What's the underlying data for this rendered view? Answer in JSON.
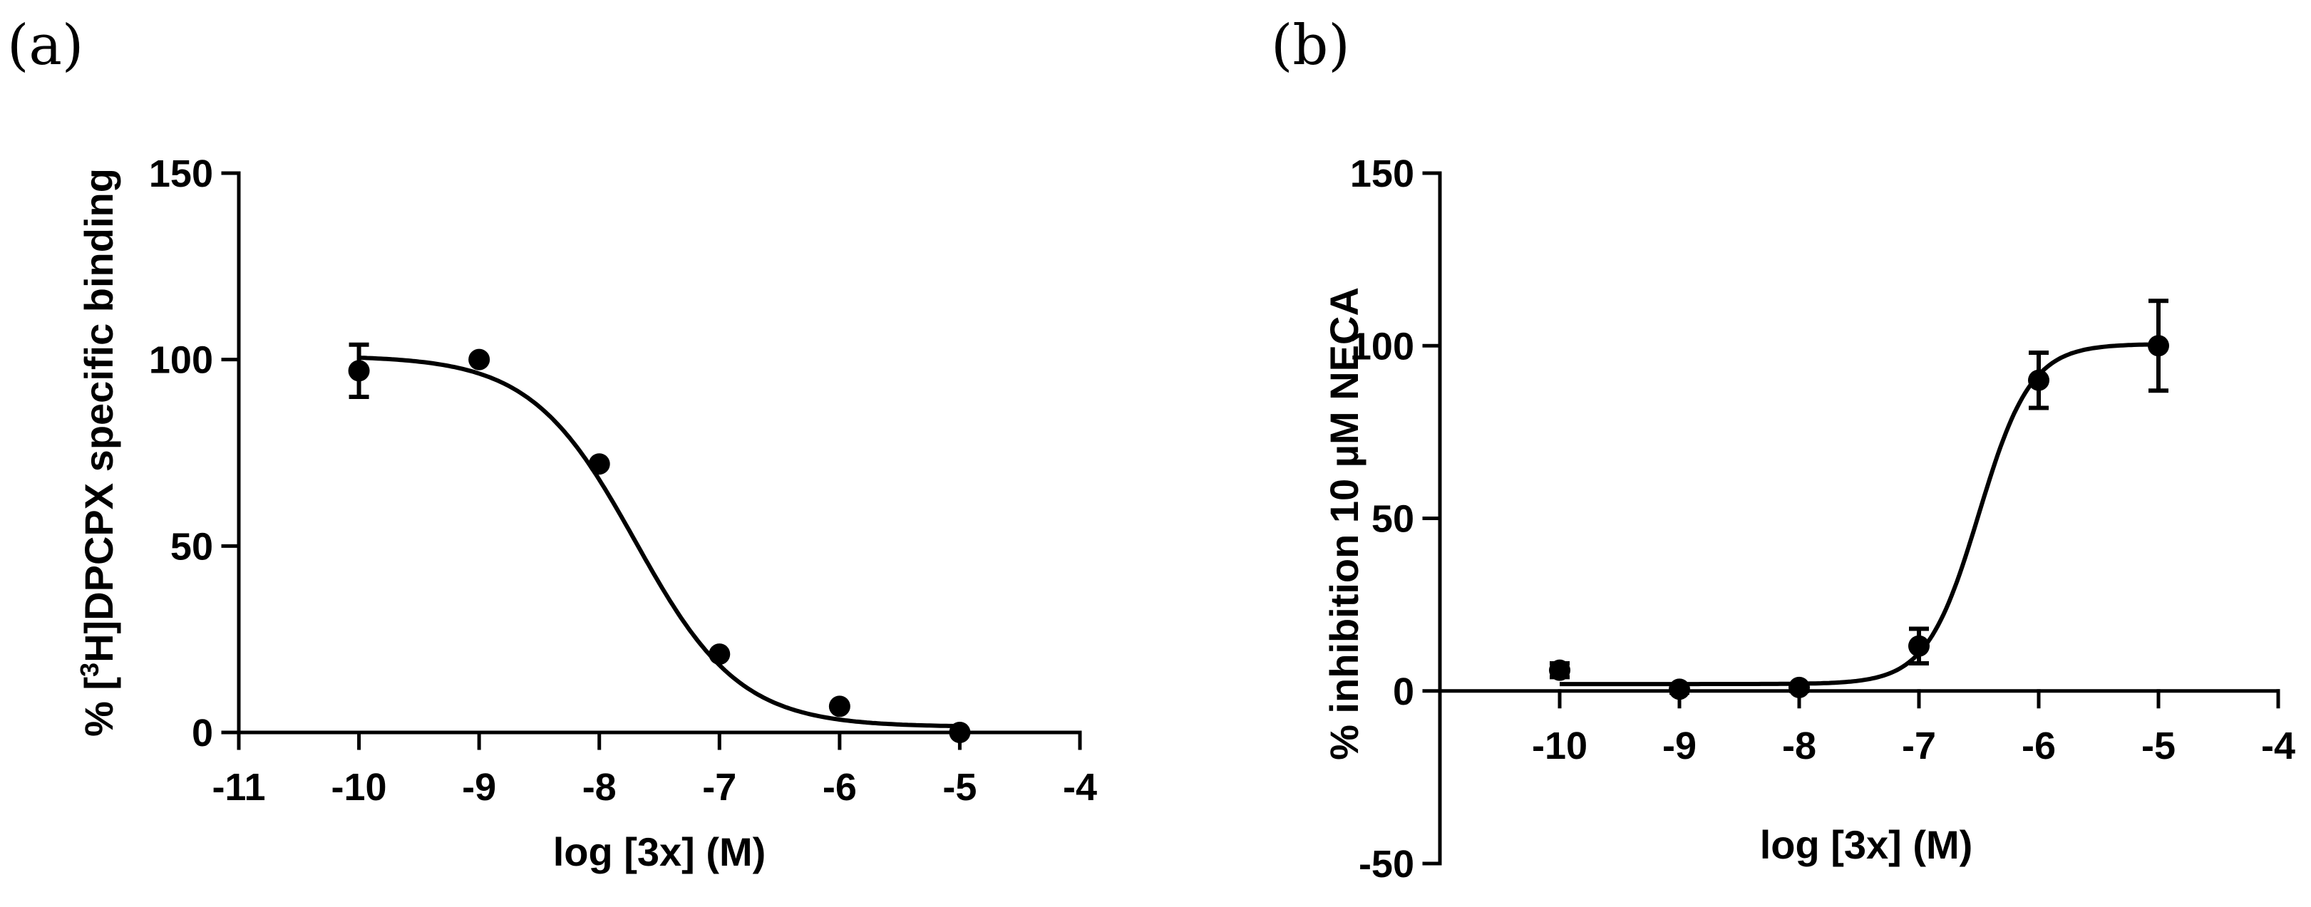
{
  "chart_data": [
    {
      "panel_label": "(a)",
      "type": "scatter",
      "xlabel": "log [3x] (M)",
      "ylabel": {
        "prefix": "% [",
        "superscript": "3",
        "suffix": "H]DPCPX specific binding"
      },
      "xlim": [
        -11,
        -4
      ],
      "ylim": [
        0,
        150
      ],
      "x_ticks": [
        -11,
        -10,
        -9,
        -8,
        -7,
        -6,
        -5,
        -4
      ],
      "x_tick_labels": [
        "-11",
        "-10",
        "-9",
        "-8",
        "-7",
        "-6",
        "-5",
        "-4"
      ],
      "y_ticks": [
        0,
        50,
        100,
        150
      ],
      "y_tick_labels": [
        "0",
        "50",
        "100",
        "150"
      ],
      "points": [
        {
          "x": -10,
          "y": 97,
          "err": 7
        },
        {
          "x": -9,
          "y": 100,
          "err": 0
        },
        {
          "x": -8,
          "y": 72,
          "err": 0
        },
        {
          "x": -7,
          "y": 21,
          "err": 0
        },
        {
          "x": -6,
          "y": 7,
          "err": 0
        },
        {
          "x": -5,
          "y": 0,
          "err": 0
        }
      ],
      "fit": {
        "model": "sigmoid",
        "top": 101,
        "bottom": 1.5,
        "logEC50": -7.7,
        "hill": -1
      },
      "grid": false
    },
    {
      "panel_label": "(b)",
      "type": "scatter",
      "xlabel": "log [3x] (M)",
      "ylabel": {
        "prefix": "% inhibition 10 µM NECA",
        "superscript": "",
        "suffix": ""
      },
      "xlim": [
        -11,
        -4
      ],
      "ylim": [
        -50,
        150
      ],
      "x_ticks": [
        -10,
        -9,
        -8,
        -7,
        -6,
        -5,
        -4
      ],
      "x_tick_labels": [
        "-10",
        "-9",
        "-8",
        "-7",
        "-6",
        "-5",
        "-4"
      ],
      "y_ticks": [
        -50,
        0,
        50,
        100,
        150
      ],
      "y_tick_labels": [
        "-50",
        "0",
        "50",
        "100",
        "150"
      ],
      "points": [
        {
          "x": -10,
          "y": 6,
          "err": 2
        },
        {
          "x": -9,
          "y": 0.5,
          "err": 1
        },
        {
          "x": -8,
          "y": 1,
          "err": 1
        },
        {
          "x": -7,
          "y": 13,
          "err": 5
        },
        {
          "x": -6,
          "y": 90,
          "err": 8
        },
        {
          "x": -5,
          "y": 100,
          "err": 13
        }
      ],
      "fit": {
        "model": "sigmoid",
        "top": 100.5,
        "bottom": 2,
        "logEC50": -6.5,
        "hill": 2
      },
      "grid": false
    }
  ]
}
